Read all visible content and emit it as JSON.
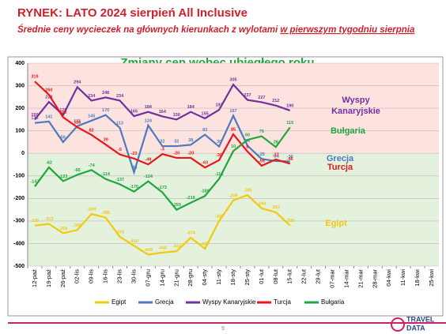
{
  "header": {
    "title": "RYNEK: LATO 2024 sierpień All Inclusive",
    "subtitle": "Średnie ceny wycieczek na głównych kierunkach z wylotami ",
    "subtitle_underlined": "w pierwszym tygodniu sierpnia"
  },
  "chart_data": {
    "type": "line",
    "title": "Zmiany cen wobec ubiegłego roku",
    "categories": [
      "12-paź",
      "19-paź",
      "26-paź",
      "02-lis",
      "09-lis",
      "16-lis",
      "23-lis",
      "30-lis",
      "07-gru",
      "14-gru",
      "21-gru",
      "28-gru",
      "04-sty",
      "11-sty",
      "18-sty",
      "25-sty",
      "01-lut",
      "08-lut",
      "15-lut",
      "22-lut",
      "29-lut",
      "07-mar",
      "14-mar",
      "21-mar",
      "28-mar",
      "04-kwi",
      "11-kwi",
      "18-kwi",
      "25-kwi"
    ],
    "series": [
      {
        "name": "Egipt",
        "color": "#f2c811",
        "values": [
          -320,
          -313,
          -354,
          -340,
          -269,
          -285,
          -370,
          -410,
          -449,
          -440,
          -434,
          -374,
          -423,
          -300,
          -209,
          -185,
          -244,
          -261,
          -320,
          null,
          null,
          null,
          null,
          null,
          null,
          null,
          null,
          null,
          null
        ]
      },
      {
        "name": "Grecja",
        "color": "#4f79bd",
        "values": [
          135,
          141,
          50,
          121,
          145,
          170,
          113,
          -84,
          124,
          32,
          32,
          38,
          83,
          30,
          167,
          34,
          -25,
          -34,
          -36,
          null,
          null,
          null,
          null,
          null,
          null,
          null,
          null,
          null,
          null
        ]
      },
      {
        "name": "Wyspy Kanaryjskie",
        "color": "#7030a0",
        "values": [
          150,
          228,
          170,
          294,
          234,
          248,
          234,
          165,
          184,
          164,
          150,
          184,
          155,
          193,
          305,
          237,
          227,
          212,
          190,
          null,
          null,
          null,
          null,
          null,
          null,
          null,
          null,
          null,
          null
        ]
      },
      {
        "name": "Turcja",
        "color": "#e8161b",
        "values": [
          319,
          260,
          160,
          116,
          82,
          39,
          -5,
          -23,
          -49,
          -3,
          -20,
          -20,
          -63,
          -30,
          85,
          8,
          -55,
          -27,
          -46,
          null,
          null,
          null,
          null,
          null,
          null,
          null,
          null,
          null,
          null
        ]
      },
      {
        "name": "Bułgaria",
        "color": "#1fa63c",
        "values": [
          -147,
          -62,
          -123,
          -95,
          -74,
          -114,
          -137,
          -170,
          -124,
          -173,
          -250,
          -219,
          -189,
          -113,
          10,
          60,
          76,
          28,
          115,
          null,
          null,
          null,
          null,
          null,
          null,
          null,
          null,
          null,
          null
        ]
      }
    ],
    "ylim": [
      -500,
      400
    ],
    "yticks": [
      -500,
      -400,
      -300,
      -200,
      -100,
      0,
      100,
      200,
      300,
      400
    ],
    "annotations": [
      {
        "lines": [
          "Wyspy",
          "Kanaryjskie"
        ],
        "color": "#7030a0"
      },
      {
        "lines": [
          "Bułgaria"
        ],
        "color": "#1fa63c"
      },
      {
        "lines": [
          "Grecja"
        ],
        "color": "#4f79bd"
      },
      {
        "lines": [
          "Turcja"
        ],
        "color": "#e8161b"
      },
      {
        "lines": [
          "Egipt"
        ],
        "color": "#f2c811"
      }
    ]
  },
  "footer": {
    "page": "9",
    "logo": [
      "TRAVEL",
      "DATA"
    ]
  }
}
